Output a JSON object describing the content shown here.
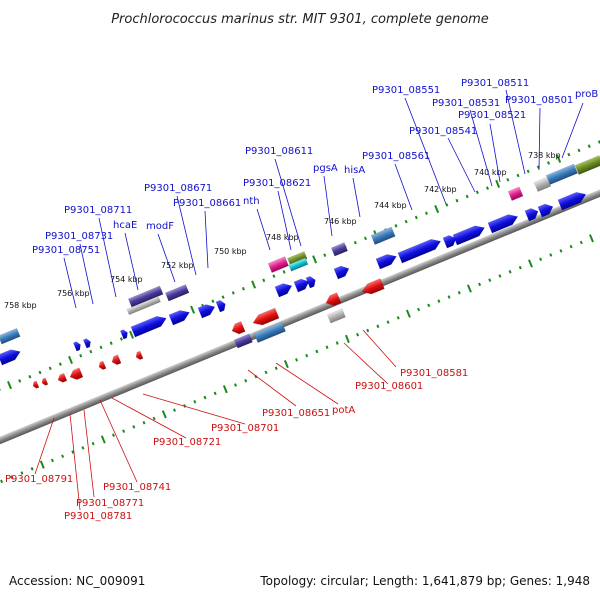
{
  "title": "Prochlorococcus marinus str. MIT 9301, complete genome",
  "footer": {
    "accession": "Accession: NC_009091",
    "summary": "Topology: circular; Length: 1,641,879 bp; Genes: 1,948"
  },
  "colors": {
    "forward_gene": "#1010dd",
    "reverse_gene": "#dd1010",
    "forward_label": "#1010cc",
    "reverse_label": "#cc1010",
    "backbone": "#8a8a8a",
    "ticks": "#1a8a1a"
  },
  "scale_labels": [
    "738 kbp",
    "740 kbp",
    "742 kbp",
    "744 kbp",
    "746 kbp",
    "748 kbp",
    "750 kbp",
    "752 kbp",
    "754 kbp",
    "756 kbp",
    "758 kbp"
  ],
  "top_labels": [
    "proB",
    "P9301_08501",
    "P9301_08511",
    "P9301_08521",
    "P9301_08531",
    "P9301_08541",
    "P9301_08551",
    "P9301_08561",
    "hisA",
    "pgsA",
    "P9301_08611",
    "P9301_08621",
    "nth",
    "P9301_08661",
    "P9301_08671",
    "modF",
    "hcaE",
    "P9301_08711",
    "P9301_08731",
    "P9301_08751"
  ],
  "bottom_labels": [
    "P9301_08581",
    "P9301_08601",
    "potA",
    "P9301_08651",
    "P9301_08701",
    "P9301_08721",
    "P9301_08741",
    "P9301_08771",
    "P9301_08781",
    "P9301_08791"
  ]
}
